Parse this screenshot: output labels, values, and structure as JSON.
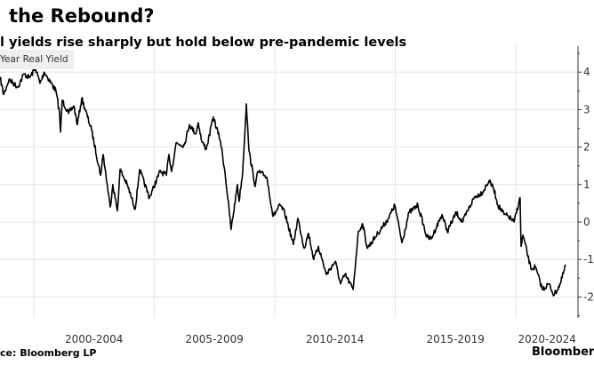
{
  "title": "the Rebound?",
  "subtitle": "l yields rise sharply but hold below pre-pandemic levels",
  "source": "ce: Bloomberg LP",
  "brand": "Bloomber",
  "chart_data": {
    "type": "line",
    "title": "the Rebound?",
    "legend": [
      "Year Real Yield"
    ],
    "legend_placement": "top-left",
    "x_tick_labels": [
      {
        "label": "2000-2004",
        "center": 2002.5
      },
      {
        "label": "2005-2009",
        "center": 2007.5
      },
      {
        "label": "2010-2014",
        "center": 2012.5
      },
      {
        "label": "2015-2019",
        "center": 2017.5
      },
      {
        "label": "2020-2024",
        "center": 2021.3
      }
    ],
    "x_gridlines": [
      2000,
      2005,
      2010,
      2015,
      2020
    ],
    "y_ticks": [
      4,
      3,
      2,
      1,
      0,
      -1,
      -2
    ],
    "y_tick_labels": [
      "4",
      "3",
      "2",
      "1",
      "0",
      "-1",
      "-2"
    ],
    "xlim": [
      1998.6,
      2022.5
    ],
    "ylim": [
      -2.5,
      4.7
    ],
    "grid": true,
    "line_color": "#000000",
    "series": [
      {
        "name": "Year Real Yield",
        "x": [
          1998.6,
          1998.75,
          1998.97,
          1999.34,
          1999.59,
          1999.82,
          2000.07,
          2000.26,
          2000.44,
          2000.92,
          2001.07,
          2001.11,
          2001.18,
          2001.44,
          2001.66,
          2001.81,
          2001.99,
          2002.4,
          2002.77,
          2002.88,
          2003.17,
          2003.28,
          2003.47,
          2003.58,
          2003.87,
          2004.21,
          2004.39,
          2004.8,
          2005.24,
          2005.5,
          2005.61,
          2005.72,
          2005.9,
          2006.24,
          2006.46,
          2006.72,
          2006.83,
          2006.97,
          2007.16,
          2007.45,
          2007.75,
          2007.93,
          2008.19,
          2008.45,
          2008.52,
          2008.67,
          2008.82,
          2008.93,
          2009.19,
          2009.3,
          2009.56,
          2009.67,
          2009.93,
          2010.22,
          2010.41,
          2010.77,
          2010.96,
          2011.22,
          2011.4,
          2011.62,
          2011.81,
          2012.14,
          2012.51,
          2012.73,
          2012.92,
          2013.25,
          2013.47,
          2013.65,
          2013.84,
          2014.28,
          2014.72,
          2014.98,
          2015.28,
          2015.57,
          2015.94,
          2016.31,
          2016.49,
          2016.94,
          2017.16,
          2017.53,
          2017.79,
          2018.27,
          2018.63,
          2018.89,
          2019.08,
          2019.26,
          2019.52,
          2019.7,
          2019.93,
          2020.18,
          2020.22,
          2020.3,
          2020.63,
          2020.81,
          2021.11,
          2021.37,
          2021.59,
          2021.85,
          2022.07
        ],
        "y": [
          3.86,
          3.4,
          3.8,
          3.6,
          3.95,
          3.85,
          4.1,
          3.7,
          4.0,
          3.5,
          2.9,
          2.4,
          3.25,
          2.9,
          3.1,
          2.6,
          3.3,
          2.45,
          1.25,
          1.8,
          0.4,
          1.0,
          0.3,
          1.4,
          1.0,
          0.35,
          1.4,
          0.65,
          1.35,
          1.25,
          1.8,
          1.35,
          2.1,
          2.05,
          2.6,
          2.35,
          2.65,
          2.15,
          1.95,
          2.8,
          2.15,
          1.35,
          -0.2,
          1.0,
          0.55,
          1.35,
          3.15,
          1.9,
          0.95,
          1.35,
          1.25,
          1.2,
          0.15,
          0.45,
          0.25,
          -0.6,
          0.1,
          -0.7,
          -0.3,
          -1.0,
          -0.65,
          -1.4,
          -1.05,
          -1.65,
          -1.4,
          -1.8,
          -0.25,
          -0.05,
          -0.7,
          -0.3,
          0.1,
          0.45,
          -0.55,
          0.25,
          0.45,
          -0.4,
          -0.45,
          0.2,
          -0.25,
          0.25,
          0.0,
          0.65,
          0.8,
          1.1,
          0.9,
          0.45,
          0.2,
          0.15,
          0.0,
          0.65,
          -0.65,
          -0.35,
          -1.25,
          -1.2,
          -1.8,
          -1.65,
          -1.95,
          -1.65,
          -1.15
        ]
      }
    ]
  }
}
